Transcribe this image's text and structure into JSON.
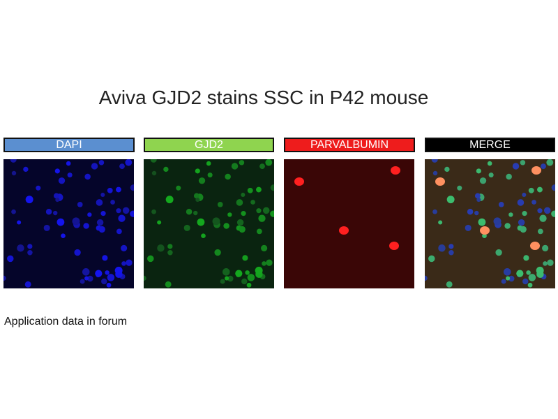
{
  "title": "Aviva GJD2 stains SSC in P42 mouse",
  "panels": [
    {
      "label": "DAPI",
      "label_color": "#5b8fd0",
      "stain": "blue"
    },
    {
      "label": "GJD2",
      "label_color": "#8fd44f",
      "stain": "green"
    },
    {
      "label": "PARVALBUMIN",
      "label_color": "#ee1c1c",
      "stain": "red"
    },
    {
      "label": "MERGE",
      "label_color": "#000000",
      "stain": "merge"
    }
  ],
  "caption": "Application data in forum"
}
